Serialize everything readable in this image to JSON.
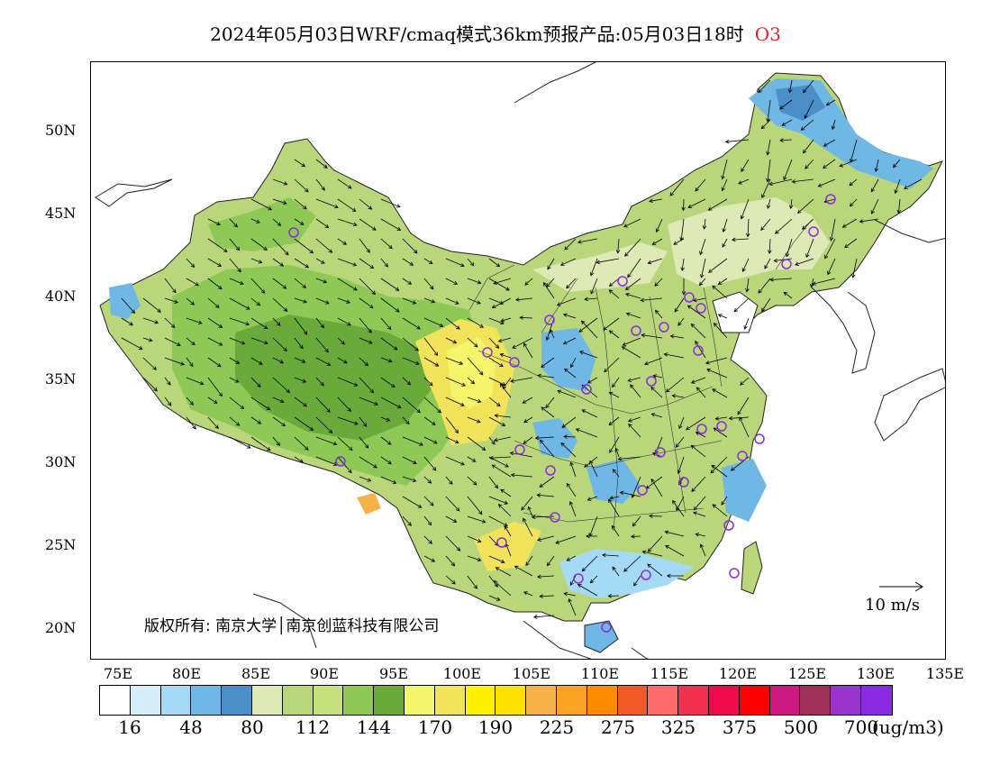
{
  "title": {
    "text": "2024年05月03日WRF/cmaq模式36km预报产品:05月03日18时",
    "species": "O3"
  },
  "map": {
    "latitude_labels": [
      "50N",
      "45N",
      "40N",
      "35N",
      "30N",
      "25N",
      "20N"
    ],
    "longitude_labels": [
      "75E",
      "80E",
      "85E",
      "90E",
      "95E",
      "100E",
      "105E",
      "110E",
      "115E",
      "120E",
      "125E",
      "130E",
      "135E"
    ],
    "copyright": "版权所有: 南京大学│南京创蓝科技有限公司",
    "wind_reference": "10 m/s",
    "border_color": "#333333"
  },
  "legend": {
    "colors": [
      "#ffffff",
      "#d6eefa",
      "#a4daf5",
      "#6fb7e4",
      "#4a8fc8",
      "#dfe9b6",
      "#b9d77a",
      "#c5e07c",
      "#8fc955",
      "#6aaa3a",
      "#f4f56a",
      "#f1e35a",
      "#fff200",
      "#ffe100",
      "#f7b34a",
      "#fca326",
      "#ff8c00",
      "#f05a28",
      "#ff6b6b",
      "#f0304e",
      "#f00a4e",
      "#ff0000",
      "#cc1a80",
      "#a0305a",
      "#9935cc",
      "#8a2be2"
    ],
    "labels": [
      "16",
      "48",
      "80",
      "112",
      "144",
      "170",
      "190",
      "225",
      "275",
      "325",
      "375",
      "500",
      "700"
    ],
    "unit": "(ug/m3)"
  }
}
